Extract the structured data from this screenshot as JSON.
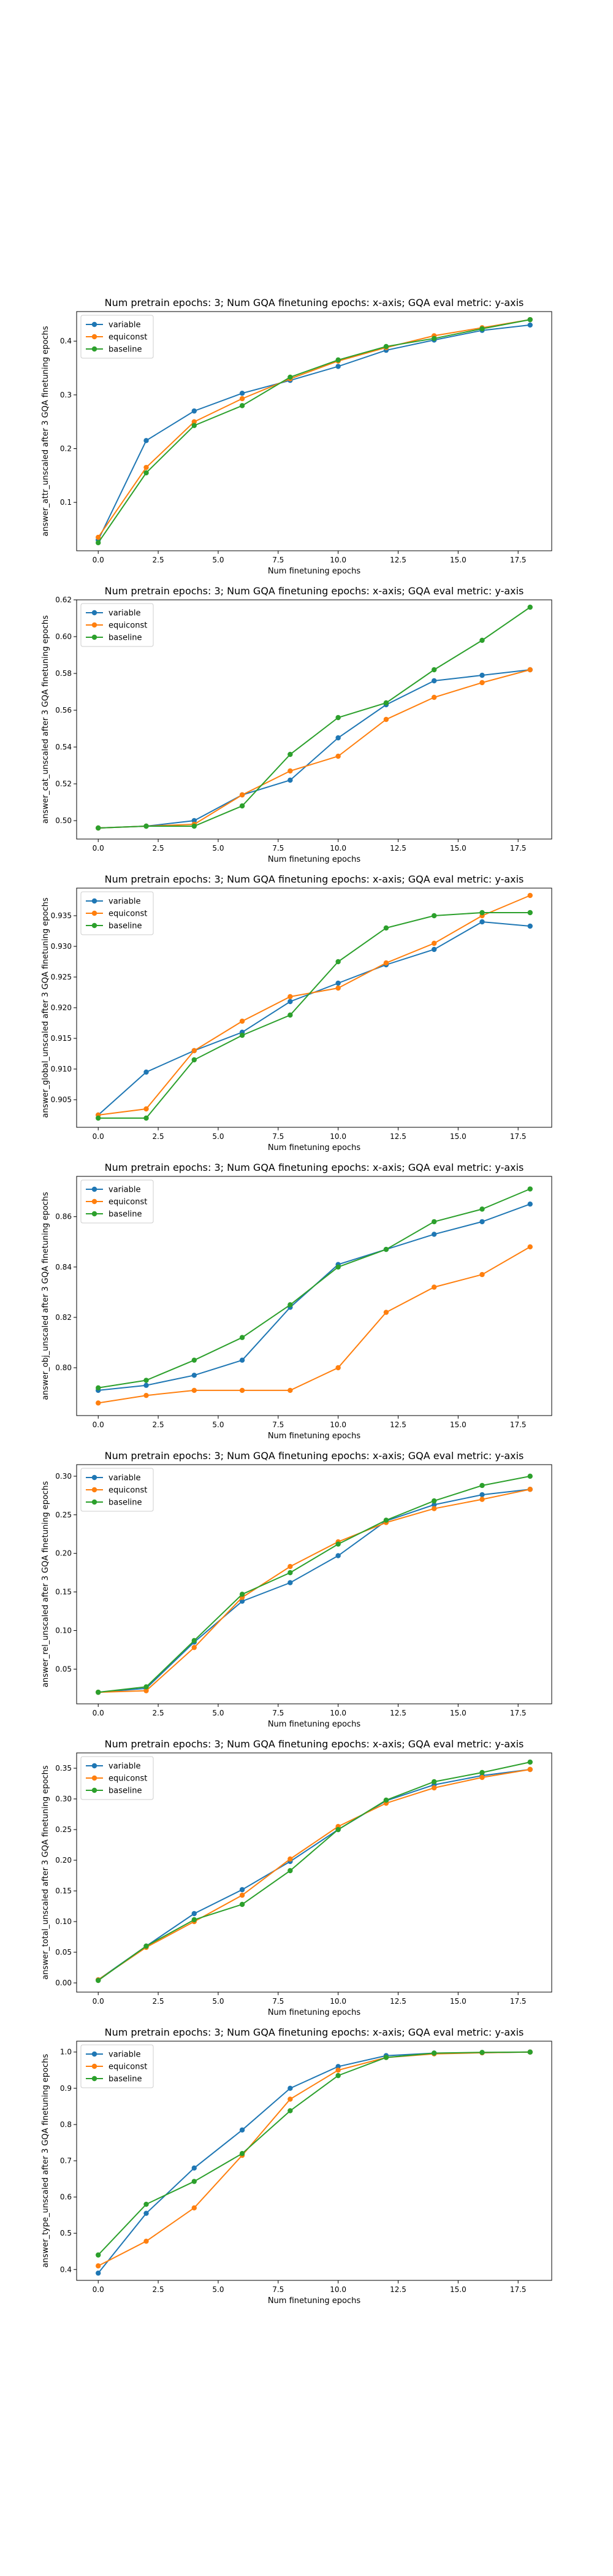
{
  "colors": {
    "variable": "#1f77b4",
    "equiconst": "#ff7f0e",
    "baseline": "#2ca02c"
  },
  "chart_data": [
    {
      "type": "line",
      "title": "Num pretrain epochs: 3; Num GQA finetuning epochs: x-axis; GQA eval metric: y-axis",
      "xlabel": "Num finetuning epochs",
      "ylabel": "answer_attr_unscaled after 3 GQA finetuning epochs",
      "x": [
        0,
        2,
        4,
        6,
        8,
        10,
        12,
        14,
        16,
        18
      ],
      "xlim": [
        -0.9,
        18.9
      ],
      "ylim": [
        0.01,
        0.455
      ],
      "xticks": [
        0.0,
        2.5,
        5.0,
        7.5,
        10.0,
        12.5,
        15.0,
        17.5
      ],
      "yticks": [
        0.1,
        0.2,
        0.3,
        0.4
      ],
      "legend": "top-left",
      "series": [
        {
          "name": "variable",
          "color": "#1f77b4",
          "values": [
            0.03,
            0.215,
            0.27,
            0.303,
            0.327,
            0.353,
            0.383,
            0.402,
            0.42,
            0.43
          ]
        },
        {
          "name": "equiconst",
          "color": "#ff7f0e",
          "values": [
            0.035,
            0.165,
            0.25,
            0.293,
            0.33,
            0.363,
            0.388,
            0.41,
            0.425,
            0.44
          ]
        },
        {
          "name": "baseline",
          "color": "#2ca02c",
          "values": [
            0.025,
            0.155,
            0.243,
            0.28,
            0.333,
            0.365,
            0.39,
            0.405,
            0.423,
            0.44
          ]
        }
      ]
    },
    {
      "type": "line",
      "title": "Num pretrain epochs: 3; Num GQA finetuning epochs: x-axis; GQA eval metric: y-axis",
      "xlabel": "Num finetuning epochs",
      "ylabel": "answer_cat_unscaled after 3 GQA finetuning epochs",
      "x": [
        0,
        2,
        4,
        6,
        8,
        10,
        12,
        14,
        16,
        18
      ],
      "xlim": [
        -0.9,
        18.9
      ],
      "ylim": [
        0.49,
        0.62
      ],
      "xticks": [
        0.0,
        2.5,
        5.0,
        7.5,
        10.0,
        12.5,
        15.0,
        17.5
      ],
      "yticks": [
        0.5,
        0.52,
        0.54,
        0.56,
        0.58,
        0.6,
        0.62
      ],
      "legend": "top-left",
      "series": [
        {
          "name": "variable",
          "color": "#1f77b4",
          "values": [
            0.496,
            0.497,
            0.5,
            0.514,
            0.522,
            0.545,
            0.563,
            0.576,
            0.579,
            0.582
          ]
        },
        {
          "name": "equiconst",
          "color": "#ff7f0e",
          "values": [
            0.496,
            0.497,
            0.498,
            0.514,
            0.527,
            0.535,
            0.555,
            0.567,
            0.575,
            0.582
          ]
        },
        {
          "name": "baseline",
          "color": "#2ca02c",
          "values": [
            0.496,
            0.497,
            0.497,
            0.508,
            0.536,
            0.556,
            0.564,
            0.582,
            0.598,
            0.616
          ]
        }
      ]
    },
    {
      "type": "line",
      "title": "Num pretrain epochs: 3; Num GQA finetuning epochs: x-axis; GQA eval metric: y-axis",
      "xlabel": "Num finetuning epochs",
      "ylabel": "answer_global_unscaled after 3 GQA finetuning epochs",
      "x": [
        0,
        2,
        4,
        6,
        8,
        10,
        12,
        14,
        16,
        18
      ],
      "xlim": [
        -0.9,
        18.9
      ],
      "ylim": [
        0.9005,
        0.9395
      ],
      "xticks": [
        0.0,
        2.5,
        5.0,
        7.5,
        10.0,
        12.5,
        15.0,
        17.5
      ],
      "yticks": [
        0.905,
        0.91,
        0.915,
        0.92,
        0.925,
        0.93,
        0.935
      ],
      "legend": "top-left",
      "series": [
        {
          "name": "variable",
          "color": "#1f77b4",
          "values": [
            0.9025,
            0.9095,
            0.913,
            0.916,
            0.921,
            0.924,
            0.927,
            0.9295,
            0.934,
            0.9333
          ]
        },
        {
          "name": "equiconst",
          "color": "#ff7f0e",
          "values": [
            0.9025,
            0.9035,
            0.913,
            0.9178,
            0.9218,
            0.9232,
            0.9273,
            0.9305,
            0.935,
            0.9383
          ]
        },
        {
          "name": "baseline",
          "color": "#2ca02c",
          "values": [
            0.902,
            0.902,
            0.9115,
            0.9155,
            0.9188,
            0.9275,
            0.933,
            0.935,
            0.9355,
            0.9355
          ]
        }
      ]
    },
    {
      "type": "line",
      "title": "Num pretrain epochs: 3; Num GQA finetuning epochs: x-axis; GQA eval metric: y-axis",
      "xlabel": "Num finetuning epochs",
      "ylabel": "answer_obj_unscaled after 3 GQA finetuning epochs",
      "x": [
        0,
        2,
        4,
        6,
        8,
        10,
        12,
        14,
        16,
        18
      ],
      "xlim": [
        -0.9,
        18.9
      ],
      "ylim": [
        0.781,
        0.876
      ],
      "xticks": [
        0.0,
        2.5,
        5.0,
        7.5,
        10.0,
        12.5,
        15.0,
        17.5
      ],
      "yticks": [
        0.8,
        0.82,
        0.84,
        0.86
      ],
      "legend": "top-left",
      "series": [
        {
          "name": "variable",
          "color": "#1f77b4",
          "values": [
            0.791,
            0.793,
            0.797,
            0.803,
            0.824,
            0.841,
            0.847,
            0.853,
            0.858,
            0.865
          ]
        },
        {
          "name": "equiconst",
          "color": "#ff7f0e",
          "values": [
            0.786,
            0.789,
            0.791,
            0.791,
            0.791,
            0.8,
            0.822,
            0.832,
            0.837,
            0.848
          ]
        },
        {
          "name": "baseline",
          "color": "#2ca02c",
          "values": [
            0.792,
            0.795,
            0.803,
            0.812,
            0.825,
            0.84,
            0.847,
            0.858,
            0.863,
            0.871
          ]
        }
      ]
    },
    {
      "type": "line",
      "title": "Num pretrain epochs: 3; Num GQA finetuning epochs: x-axis; GQA eval metric: y-axis",
      "xlabel": "Num finetuning epochs",
      "ylabel": "answer_rel_unscaled after 3 GQA finetuning epochs",
      "x": [
        0,
        2,
        4,
        6,
        8,
        10,
        12,
        14,
        16,
        18
      ],
      "xlim": [
        -0.9,
        18.9
      ],
      "ylim": [
        0.005,
        0.315
      ],
      "xticks": [
        0.0,
        2.5,
        5.0,
        7.5,
        10.0,
        12.5,
        15.0,
        17.5
      ],
      "yticks": [
        0.05,
        0.1,
        0.15,
        0.2,
        0.25,
        0.3
      ],
      "legend": "top-left",
      "series": [
        {
          "name": "variable",
          "color": "#1f77b4",
          "values": [
            0.02,
            0.025,
            0.085,
            0.138,
            0.162,
            0.197,
            0.242,
            0.263,
            0.276,
            0.283
          ]
        },
        {
          "name": "equiconst",
          "color": "#ff7f0e",
          "values": [
            0.02,
            0.022,
            0.078,
            0.143,
            0.183,
            0.215,
            0.24,
            0.258,
            0.27,
            0.283
          ]
        },
        {
          "name": "baseline",
          "color": "#2ca02c",
          "values": [
            0.02,
            0.027,
            0.087,
            0.147,
            0.175,
            0.212,
            0.243,
            0.268,
            0.288,
            0.3
          ]
        }
      ]
    },
    {
      "type": "line",
      "title": "Num pretrain epochs: 3; Num GQA finetuning epochs: x-axis; GQA eval metric: y-axis",
      "xlabel": "Num finetuning epochs",
      "ylabel": "answer_total_unscaled after 3 GQA finetuning epochs",
      "x": [
        0,
        2,
        4,
        6,
        8,
        10,
        12,
        14,
        16,
        18
      ],
      "xlim": [
        -0.9,
        18.9
      ],
      "ylim": [
        -0.015,
        0.375
      ],
      "xticks": [
        0.0,
        2.5,
        5.0,
        7.5,
        10.0,
        12.5,
        15.0,
        17.5
      ],
      "yticks": [
        0.0,
        0.05,
        0.1,
        0.15,
        0.2,
        0.25,
        0.3,
        0.35
      ],
      "legend": "top-left",
      "series": [
        {
          "name": "variable",
          "color": "#1f77b4",
          "values": [
            0.005,
            0.06,
            0.113,
            0.152,
            0.198,
            0.25,
            0.297,
            0.323,
            0.338,
            0.348
          ]
        },
        {
          "name": "equiconst",
          "color": "#ff7f0e",
          "values": [
            0.005,
            0.058,
            0.1,
            0.143,
            0.202,
            0.255,
            0.293,
            0.318,
            0.335,
            0.348
          ]
        },
        {
          "name": "baseline",
          "color": "#2ca02c",
          "values": [
            0.004,
            0.06,
            0.103,
            0.128,
            0.183,
            0.25,
            0.298,
            0.328,
            0.343,
            0.36
          ]
        }
      ]
    },
    {
      "type": "line",
      "title": "Num pretrain epochs: 3; Num GQA finetuning epochs: x-axis; GQA eval metric: y-axis",
      "xlabel": "Num finetuning epochs",
      "ylabel": "answer_type_unscaled after 3 GQA finetuning epochs",
      "x": [
        0,
        2,
        4,
        6,
        8,
        10,
        12,
        14,
        16,
        18
      ],
      "xlim": [
        -0.9,
        18.9
      ],
      "ylim": [
        0.37,
        1.03
      ],
      "xticks": [
        0.0,
        2.5,
        5.0,
        7.5,
        10.0,
        12.5,
        15.0,
        17.5
      ],
      "yticks": [
        0.4,
        0.5,
        0.6,
        0.7,
        0.8,
        0.9,
        1.0
      ],
      "legend": "top-left",
      "series": [
        {
          "name": "variable",
          "color": "#1f77b4",
          "values": [
            0.39,
            0.555,
            0.68,
            0.785,
            0.9,
            0.96,
            0.99,
            0.997,
            0.998,
            1.0
          ]
        },
        {
          "name": "equiconst",
          "color": "#ff7f0e",
          "values": [
            0.41,
            0.478,
            0.57,
            0.715,
            0.87,
            0.95,
            0.985,
            0.995,
            0.998,
            1.0
          ]
        },
        {
          "name": "baseline",
          "color": "#2ca02c",
          "values": [
            0.44,
            0.58,
            0.643,
            0.72,
            0.838,
            0.935,
            0.985,
            0.997,
            0.999,
            1.0
          ]
        }
      ]
    }
  ]
}
